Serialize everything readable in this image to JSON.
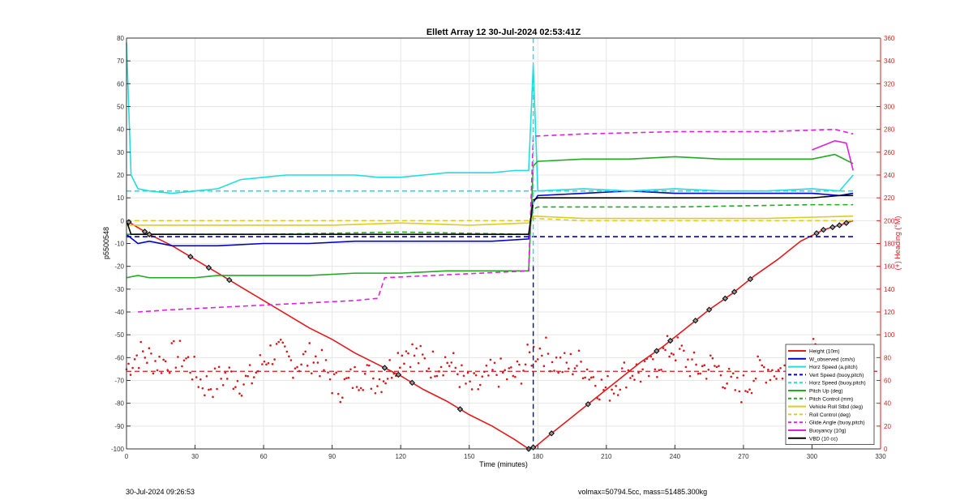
{
  "chart_data": {
    "type": "line",
    "title": "Ellett Array 12 30-Jul-2024 02:53:41Z",
    "xlabel": "Time (minutes)",
    "ylabel": "p5500548",
    "y2label": "(+) Heading (°M)",
    "xlim": [
      0,
      330
    ],
    "ylim": [
      -100,
      80
    ],
    "y2lim": [
      0,
      360
    ],
    "xticks": [
      "0",
      "30",
      "60",
      "90",
      "120",
      "150",
      "180",
      "210",
      "240",
      "270",
      "300",
      "330"
    ],
    "yticks": [
      "80",
      "70",
      "60",
      "50",
      "40",
      "30",
      "20",
      "10",
      "0",
      "-10",
      "-20",
      "-30",
      "-40",
      "-50",
      "-60",
      "-70",
      "-80",
      "-90",
      "-100"
    ],
    "y2ticks": [
      "360",
      "340",
      "320",
      "300",
      "280",
      "260",
      "240",
      "220",
      "200",
      "180",
      "160",
      "140",
      "120",
      "100",
      "80",
      "60",
      "40",
      "20",
      "0"
    ],
    "grid": true,
    "legend_position": "bottom-right",
    "apogee_time": 178,
    "series": [
      {
        "name": "Height (10m)",
        "color": "#e41a1c",
        "style": "solid",
        "x": [
          0,
          5,
          10,
          20,
          30,
          40,
          50,
          60,
          70,
          80,
          90,
          100,
          110,
          120,
          130,
          140,
          150,
          160,
          170,
          176,
          179,
          185,
          195,
          205,
          215,
          225,
          235,
          245,
          255,
          265,
          275,
          285,
          295,
          305,
          312,
          318
        ],
        "y": [
          0,
          -3,
          -6,
          -11,
          -17,
          -23,
          -29,
          -35,
          -41,
          -47,
          -52,
          -58,
          -63,
          -68,
          -74,
          -79,
          -85,
          -90,
          -96,
          -100,
          -99,
          -94,
          -86,
          -78,
          -70,
          -62,
          -55,
          -47,
          -39,
          -32,
          -24,
          -17,
          -9,
          -4,
          -2,
          0
        ]
      },
      {
        "name": "W_observed (cm/s)",
        "color": "#0000cc",
        "style": "solid",
        "x": [
          0,
          5,
          10,
          20,
          30,
          40,
          60,
          80,
          100,
          120,
          140,
          160,
          176,
          178,
          180,
          200,
          220,
          240,
          260,
          280,
          300,
          312,
          318
        ],
        "y": [
          -6,
          -10,
          -9,
          -11,
          -11,
          -11,
          -10,
          -10,
          -9,
          -9,
          -9,
          -9,
          -8,
          8,
          11,
          12,
          13,
          12,
          12,
          12,
          12,
          11,
          12
        ]
      },
      {
        "name": "Horz Speed (a,pitch)",
        "color": "#22dddd",
        "style": "solid",
        "x": [
          0,
          2,
          5,
          10,
          20,
          30,
          40,
          50,
          60,
          70,
          80,
          90,
          100,
          110,
          120,
          130,
          140,
          150,
          160,
          170,
          176,
          178,
          180,
          200,
          220,
          240,
          260,
          280,
          300,
          312,
          318
        ],
        "y": [
          78,
          20,
          14,
          13,
          12,
          13,
          14,
          18,
          19,
          20,
          20,
          20,
          20,
          19,
          19,
          20,
          21,
          21,
          21,
          22,
          22,
          68,
          13,
          14,
          13,
          14,
          13,
          13,
          14,
          13,
          20
        ]
      },
      {
        "name": "Vert Speed (buoy,pitch)",
        "color": "#0000cc",
        "style": "dashed",
        "x": [
          0,
          318
        ],
        "y": [
          -7,
          -7
        ]
      },
      {
        "name": "Horz Speed (buoy,pitch)",
        "color": "#22dddd",
        "style": "dashed",
        "x": [
          0,
          318
        ],
        "y": [
          13,
          13
        ]
      },
      {
        "name": "Pitch Up (deg)",
        "color": "#22aa22",
        "style": "solid",
        "x": [
          0,
          5,
          10,
          20,
          30,
          40,
          60,
          80,
          100,
          120,
          140,
          160,
          176,
          178,
          180,
          200,
          220,
          240,
          260,
          280,
          300,
          310,
          318
        ],
        "y": [
          -25,
          -24,
          -25,
          -25,
          -25,
          -24,
          -24,
          -24,
          -23,
          -23,
          -22,
          -22,
          -22,
          24,
          26,
          27,
          27,
          28,
          27,
          27,
          27,
          29,
          25
        ]
      },
      {
        "name": "Pitch Control (mm)",
        "color": "#22aa22",
        "style": "dashed",
        "x": [
          0,
          60,
          120,
          176,
          178,
          180,
          240,
          300,
          318
        ],
        "y": [
          -6,
          -6,
          -5,
          -6,
          5,
          6,
          6,
          7,
          7
        ]
      },
      {
        "name": "Vehicle Roll Stbd (deg)",
        "color": "#ddcc22",
        "style": "solid",
        "x": [
          0,
          30,
          60,
          90,
          120,
          150,
          176,
          178,
          200,
          240,
          280,
          318
        ],
        "y": [
          -2,
          -2,
          -2,
          -2,
          -1,
          -2,
          -1,
          2,
          1,
          1,
          1,
          2
        ]
      },
      {
        "name": "Roll Control (deg)",
        "color": "#ddcc22",
        "style": "dashed",
        "x": [
          0,
          30,
          60,
          90,
          120,
          150,
          176,
          178,
          200,
          240,
          280,
          318
        ],
        "y": [
          0,
          0,
          0,
          0,
          0,
          0,
          0,
          1,
          0,
          0,
          0,
          0
        ]
      },
      {
        "name": "Glide Angle (buoy,pitch)",
        "color": "#dd22dd",
        "style": "dashed",
        "x": [
          5,
          20,
          40,
          60,
          80,
          100,
          110,
          113,
          176,
          178,
          200,
          240,
          280,
          310,
          318
        ],
        "y": [
          -40,
          -39,
          -38,
          -37,
          -36,
          -35,
          -34,
          -25,
          -22,
          37,
          38,
          39,
          39,
          40,
          38
        ]
      },
      {
        "name": "Buoyancy (10g)",
        "color": "#dd22dd",
        "style": "solid",
        "x": [
          300,
          305,
          310,
          315,
          318
        ],
        "y": [
          31,
          33,
          35,
          34,
          22
        ]
      },
      {
        "name": "VBD (10 cc)",
        "color": "#000000",
        "style": "solid",
        "x": [
          0,
          2,
          60,
          120,
          176,
          178,
          180,
          200,
          240,
          280,
          300,
          312,
          318
        ],
        "y": [
          0,
          -6,
          -6,
          -6,
          -6,
          9,
          10,
          10,
          10,
          10,
          10,
          11,
          11
        ]
      }
    ]
  },
  "footer": {
    "left": "30-Jul-2024 09:26:53",
    "right": "volmax=50794.5cc, mass=51485.300kg"
  }
}
